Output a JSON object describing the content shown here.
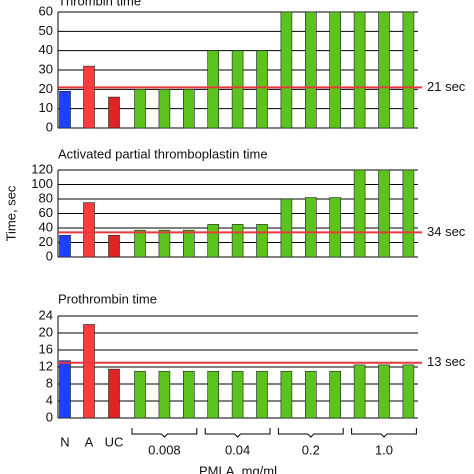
{
  "chart_data": [
    {
      "type": "bar",
      "title": "Thrombin time",
      "values": [
        19,
        32,
        16,
        20,
        20,
        20,
        40,
        40,
        40,
        60,
        60,
        60,
        60,
        60,
        60
      ],
      "colors": [
        "#1f3fff",
        "#ff3b3b",
        "#e02424",
        "#5cc21e",
        "#5cc21e",
        "#5cc21e",
        "#5cc21e",
        "#5cc21e",
        "#5cc21e",
        "#5cc21e",
        "#5cc21e",
        "#5cc21e",
        "#5cc21e",
        "#5cc21e",
        "#5cc21e"
      ],
      "ylim": [
        0,
        60
      ],
      "yticks": [
        0,
        10,
        20,
        30,
        40,
        50,
        60
      ],
      "grid": true,
      "reference": {
        "value": 21,
        "label": "21 sec",
        "color": "#e8383d"
      }
    },
    {
      "type": "bar",
      "title": "Activated partial thromboplastin time",
      "ylabel": "Time, sec",
      "values": [
        30,
        75,
        30,
        37,
        37,
        37,
        45,
        45,
        45,
        80,
        82,
        82,
        120,
        120,
        120
      ],
      "colors": [
        "#1f3fff",
        "#ff3b3b",
        "#e02424",
        "#5cc21e",
        "#5cc21e",
        "#5cc21e",
        "#5cc21e",
        "#5cc21e",
        "#5cc21e",
        "#5cc21e",
        "#5cc21e",
        "#5cc21e",
        "#5cc21e",
        "#5cc21e",
        "#5cc21e"
      ],
      "ylim": [
        0,
        120
      ],
      "yticks": [
        0,
        20,
        40,
        60,
        80,
        100,
        120
      ],
      "grid": true,
      "reference": {
        "value": 34,
        "label": "34 sec",
        "color": "#e8383d"
      }
    },
    {
      "type": "bar",
      "title": "Prothrombin time",
      "xlabel": "PMLA, mg/ml",
      "categories": [
        "N",
        "A",
        "UC",
        null,
        null,
        null,
        null,
        null,
        null,
        null,
        null,
        null,
        null,
        null,
        null
      ],
      "groups": [
        "0.008",
        "0.04",
        "0.2",
        "1.0"
      ],
      "values": [
        13.5,
        22,
        11.5,
        11,
        11,
        11,
        11,
        11,
        11,
        11,
        11,
        11,
        12.5,
        12.5,
        12.5
      ],
      "colors": [
        "#1f3fff",
        "#ff3b3b",
        "#e02424",
        "#5cc21e",
        "#5cc21e",
        "#5cc21e",
        "#5cc21e",
        "#5cc21e",
        "#5cc21e",
        "#5cc21e",
        "#5cc21e",
        "#5cc21e",
        "#5cc21e",
        "#5cc21e",
        "#5cc21e"
      ],
      "ylim": [
        0,
        24
      ],
      "yticks": [
        0,
        4,
        8,
        12,
        16,
        20,
        24
      ],
      "grid": true,
      "reference": {
        "value": 13,
        "label": "13 sec",
        "color": "#e8383d"
      }
    }
  ]
}
